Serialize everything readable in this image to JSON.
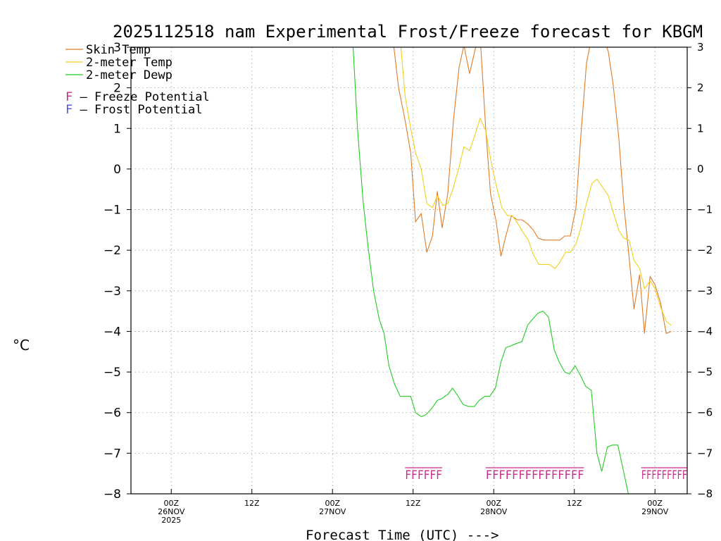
{
  "chart_data": {
    "type": "line",
    "title": "2025112518 nam Experimental Frost/Freeze forecast for KBGM",
    "xlabel": "Forecast Time (UTC) --->",
    "ylabel": "°C",
    "x_unit": "hours since 2025-11-26 00Z",
    "xlim": [
      -5,
      64
    ],
    "ylim": [
      -8,
      3
    ],
    "grid": true,
    "y_ticks": [
      -8,
      -7,
      -6,
      -5,
      -4,
      -3,
      -2,
      -1,
      0,
      1,
      2,
      3
    ],
    "y_tick_labels": [
      "−8",
      "−7",
      "−6",
      "−5",
      "−4",
      "−3",
      "−2",
      "−1",
      "0",
      "1",
      "2",
      "3"
    ],
    "x_ticks": [
      {
        "x": 0,
        "line1": "00Z",
        "line2": "26NOV",
        "line3": "2025"
      },
      {
        "x": 10,
        "line1": "12Z",
        "line2": "",
        "line3": ""
      },
      {
        "x": 20,
        "line1": "00Z",
        "line2": "27NOV",
        "line3": ""
      },
      {
        "x": 30,
        "line1": "12Z",
        "line2": "",
        "line3": ""
      },
      {
        "x": 40,
        "line1": "00Z",
        "line2": "28NOV",
        "line3": ""
      },
      {
        "x": 50,
        "line1": "12Z",
        "line2": "",
        "line3": ""
      },
      {
        "x": 60,
        "line1": "00Z",
        "line2": "29NOV",
        "line3": ""
      }
    ],
    "series": [
      {
        "name": "Skin Temp",
        "color": "#e07b28",
        "points": [
          [
            27.5,
            3.2
          ],
          [
            28.2,
            2.0
          ],
          [
            29.0,
            1.2
          ],
          [
            29.7,
            0.4
          ],
          [
            30.3,
            -1.3
          ],
          [
            31.0,
            -1.1
          ],
          [
            31.7,
            -2.05
          ],
          [
            32.4,
            -1.65
          ],
          [
            33.0,
            -0.55
          ],
          [
            33.6,
            -1.45
          ],
          [
            34.3,
            -0.6
          ],
          [
            35.0,
            1.2
          ],
          [
            35.7,
            2.5
          ],
          [
            36.3,
            3.05
          ],
          [
            37.0,
            2.35
          ],
          [
            37.7,
            2.95
          ],
          [
            38.3,
            3.3
          ],
          [
            39.0,
            1.0
          ],
          [
            39.6,
            -0.6
          ],
          [
            40.3,
            -1.3
          ],
          [
            40.9,
            -2.15
          ],
          [
            41.5,
            -1.65
          ],
          [
            42.2,
            -1.15
          ],
          [
            42.9,
            -1.25
          ],
          [
            43.5,
            -1.25
          ],
          [
            44.2,
            -1.35
          ],
          [
            44.9,
            -1.5
          ],
          [
            45.5,
            -1.7
          ],
          [
            46.2,
            -1.75
          ],
          [
            46.9,
            -1.75
          ],
          [
            47.5,
            -1.75
          ],
          [
            48.2,
            -1.75
          ],
          [
            48.8,
            -1.65
          ],
          [
            49.5,
            -1.65
          ],
          [
            50.2,
            -0.95
          ],
          [
            50.8,
            0.8
          ],
          [
            51.5,
            2.6
          ],
          [
            52.2,
            3.3
          ],
          [
            53.5,
            3.3
          ],
          [
            54.2,
            2.9
          ],
          [
            54.8,
            2.1
          ],
          [
            55.5,
            0.8
          ],
          [
            56.1,
            -0.8
          ],
          [
            56.8,
            -2.2
          ],
          [
            57.4,
            -3.45
          ],
          [
            58.1,
            -2.6
          ],
          [
            58.7,
            -4.05
          ],
          [
            59.4,
            -2.65
          ],
          [
            60.0,
            -2.85
          ],
          [
            60.7,
            -3.3
          ],
          [
            61.4,
            -4.05
          ],
          [
            62.0,
            -4.0
          ]
        ]
      },
      {
        "name": "2-meter Temp",
        "color": "#f0d020",
        "points": [
          [
            28.4,
            3.2
          ],
          [
            29.0,
            1.8
          ],
          [
            29.7,
            1.0
          ],
          [
            30.3,
            0.4
          ],
          [
            31.0,
            0.0
          ],
          [
            31.7,
            -0.85
          ],
          [
            32.4,
            -0.95
          ],
          [
            33.0,
            -0.65
          ],
          [
            33.7,
            -0.9
          ],
          [
            34.3,
            -0.85
          ],
          [
            35.0,
            -0.45
          ],
          [
            35.7,
            0.05
          ],
          [
            36.3,
            0.55
          ],
          [
            37.0,
            0.45
          ],
          [
            37.7,
            0.85
          ],
          [
            38.3,
            1.25
          ],
          [
            39.0,
            0.95
          ],
          [
            39.7,
            0.15
          ],
          [
            40.3,
            -0.4
          ],
          [
            41.0,
            -0.95
          ],
          [
            41.7,
            -1.15
          ],
          [
            42.3,
            -1.15
          ],
          [
            43.0,
            -1.35
          ],
          [
            43.6,
            -1.55
          ],
          [
            44.3,
            -1.75
          ],
          [
            44.9,
            -2.1
          ],
          [
            45.6,
            -2.35
          ],
          [
            46.3,
            -2.35
          ],
          [
            46.9,
            -2.35
          ],
          [
            47.6,
            -2.45
          ],
          [
            48.2,
            -2.3
          ],
          [
            48.9,
            -2.05
          ],
          [
            49.5,
            -2.05
          ],
          [
            50.2,
            -1.85
          ],
          [
            50.8,
            -1.45
          ],
          [
            51.5,
            -0.85
          ],
          [
            52.2,
            -0.35
          ],
          [
            52.8,
            -0.25
          ],
          [
            53.5,
            -0.45
          ],
          [
            54.2,
            -0.65
          ],
          [
            54.8,
            -1.05
          ],
          [
            55.5,
            -1.5
          ],
          [
            56.1,
            -1.7
          ],
          [
            56.8,
            -1.75
          ],
          [
            57.4,
            -2.25
          ],
          [
            58.1,
            -2.45
          ],
          [
            58.7,
            -2.95
          ],
          [
            59.4,
            -2.75
          ],
          [
            60.0,
            -2.95
          ],
          [
            60.7,
            -3.4
          ],
          [
            61.4,
            -3.75
          ],
          [
            62.0,
            -3.85
          ]
        ]
      },
      {
        "name": "2-meter Dewp",
        "color": "#22cc22",
        "points": [
          [
            22.5,
            3.2
          ],
          [
            23.1,
            1.0
          ],
          [
            23.8,
            -0.8
          ],
          [
            24.4,
            -1.9
          ],
          [
            25.1,
            -3.0
          ],
          [
            25.8,
            -3.7
          ],
          [
            26.4,
            -4.05
          ],
          [
            27.0,
            -4.85
          ],
          [
            27.7,
            -5.3
          ],
          [
            28.4,
            -5.6
          ],
          [
            29.0,
            -5.6
          ],
          [
            29.7,
            -5.6
          ],
          [
            30.3,
            -6.0
          ],
          [
            31.0,
            -6.1
          ],
          [
            31.6,
            -6.05
          ],
          [
            32.3,
            -5.9
          ],
          [
            33.0,
            -5.7
          ],
          [
            33.6,
            -5.65
          ],
          [
            34.3,
            -5.55
          ],
          [
            34.9,
            -5.4
          ],
          [
            35.6,
            -5.6
          ],
          [
            36.2,
            -5.8
          ],
          [
            36.9,
            -5.85
          ],
          [
            37.6,
            -5.85
          ],
          [
            38.2,
            -5.7
          ],
          [
            38.9,
            -5.6
          ],
          [
            39.5,
            -5.6
          ],
          [
            40.2,
            -5.4
          ],
          [
            40.9,
            -4.75
          ],
          [
            41.5,
            -4.4
          ],
          [
            42.2,
            -4.35
          ],
          [
            42.8,
            -4.3
          ],
          [
            43.5,
            -4.25
          ],
          [
            44.2,
            -3.85
          ],
          [
            44.8,
            -3.7
          ],
          [
            45.5,
            -3.55
          ],
          [
            46.1,
            -3.5
          ],
          [
            46.8,
            -3.65
          ],
          [
            47.5,
            -4.45
          ],
          [
            48.1,
            -4.75
          ],
          [
            48.8,
            -5.0
          ],
          [
            49.4,
            -5.05
          ],
          [
            50.1,
            -4.85
          ],
          [
            50.8,
            -5.1
          ],
          [
            51.4,
            -5.35
          ],
          [
            52.1,
            -5.45
          ],
          [
            52.8,
            -7.0
          ],
          [
            53.4,
            -7.45
          ],
          [
            54.1,
            -6.85
          ],
          [
            54.7,
            -6.8
          ],
          [
            55.4,
            -6.8
          ],
          [
            56.1,
            -7.45
          ],
          [
            56.7,
            -8.0
          ]
        ]
      }
    ],
    "freeze_markers": [
      {
        "x_start": 29.0,
        "x_end": 33.6,
        "label": "FFFFFF"
      },
      {
        "x_start": 39.0,
        "x_end": 51.2,
        "label": "FFFFFFFFFFFFFFF"
      },
      {
        "x_start": 58.3,
        "x_end": 64.0,
        "label": "FFFFFFFFF"
      }
    ],
    "legend": [
      {
        "label": "Skin Temp",
        "color": "#e07b28"
      },
      {
        "label": "2-meter Temp",
        "color": "#f0d020"
      },
      {
        "label": "2-meter Dewp",
        "color": "#22cc22"
      }
    ],
    "potential_legend": [
      {
        "glyph": "F",
        "text": " – Freeze Potential",
        "color": "#cc2a8a"
      },
      {
        "glyph": "F",
        "text": " – Frost Potential",
        "color": "#5050ee"
      }
    ]
  }
}
